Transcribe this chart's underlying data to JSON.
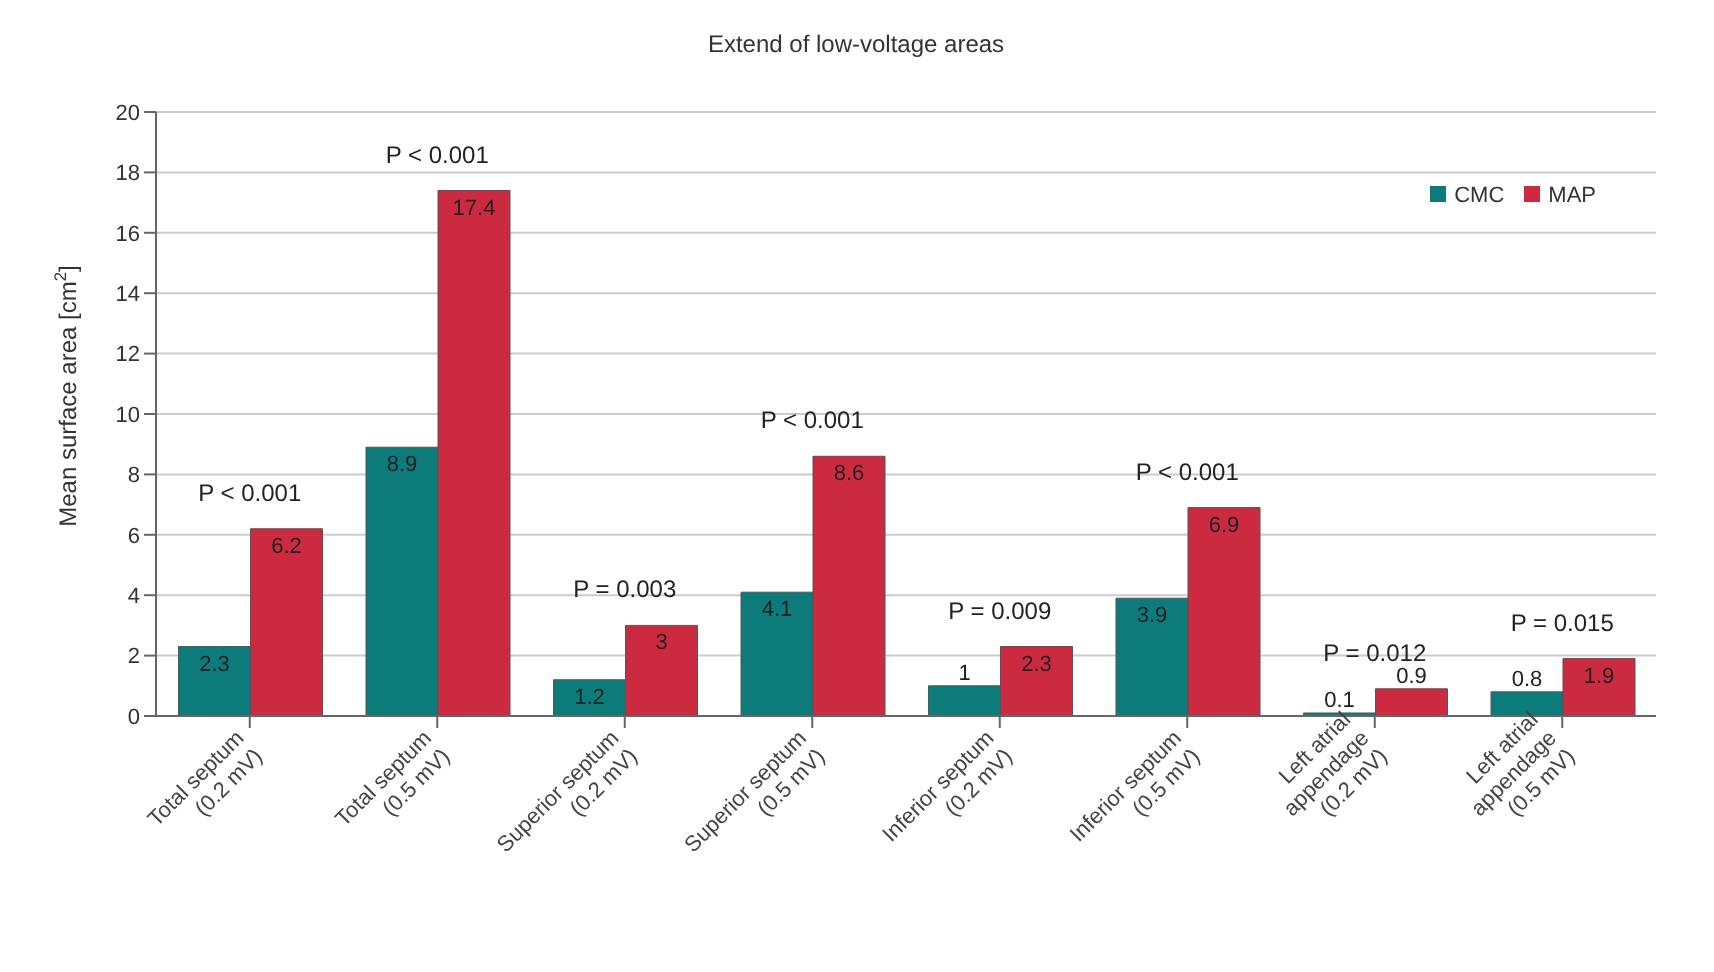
{
  "chart_data": {
    "type": "bar",
    "title": "Extend of low-voltage areas",
    "ylabel": "Mean surface area [cm$^{2}$]",
    "categories": [
      "Total septum\n(0.2 mV)",
      "Total septum\n(0.5 mV)",
      "Superior septum\n(0.2 mV)",
      "Superior septum\n(0.5 mV)",
      "Inferior septum\n(0.2 mV)",
      "Inferior septum\n(0.5 mV)",
      "Left atrial\nappendage\n(0.2 mV)",
      "Left atrial\nappendage\n(0.5 mV)"
    ],
    "series": [
      {
        "name": "CMC",
        "color": "#0e7b7b",
        "values": [
          2.3,
          8.9,
          1.2,
          4.1,
          1,
          3.9,
          0.1,
          0.8
        ]
      },
      {
        "name": "MAP",
        "color": "#cc2a40",
        "values": [
          6.2,
          17.4,
          3,
          8.6,
          2.3,
          6.9,
          0.9,
          1.9
        ]
      }
    ],
    "ylim": [
      0,
      20
    ],
    "yticks": [
      0,
      2,
      4,
      6,
      8,
      10,
      12,
      14,
      16,
      18,
      20
    ],
    "grid": "y",
    "legend": "top right",
    "data_labels": true,
    "annotations": [
      {
        "text": "P < 0.001",
        "x": "Total septum\n(0.2 mV)",
        "y": 6.2
      },
      {
        "text": "P < 0.001",
        "x": "Total septum\n(0.5 mV)",
        "y": 17.4
      },
      {
        "text": "P = 0.003",
        "x": "Superior septum\n(0.2 mV)",
        "y": 3
      },
      {
        "text": "P < 0.001",
        "x": "Superior septum\n(0.5 mV)",
        "y": 8.6
      },
      {
        "text": "P = 0.009",
        "x": "Inferior septum\n(0.2 mV)",
        "y": 2.3
      },
      {
        "text": "P < 0.001",
        "x": "Inferior septum\n(0.5 mV)",
        "y": 6.9
      },
      {
        "text": "P = 0.012",
        "x": "Left atrial\nappendage\n(0.2 mV)",
        "y": 0.9
      },
      {
        "text": "P = 0.015",
        "x": "Left atrial\nappendage\n(0.5 mV)",
        "y": 1.9
      }
    ]
  }
}
